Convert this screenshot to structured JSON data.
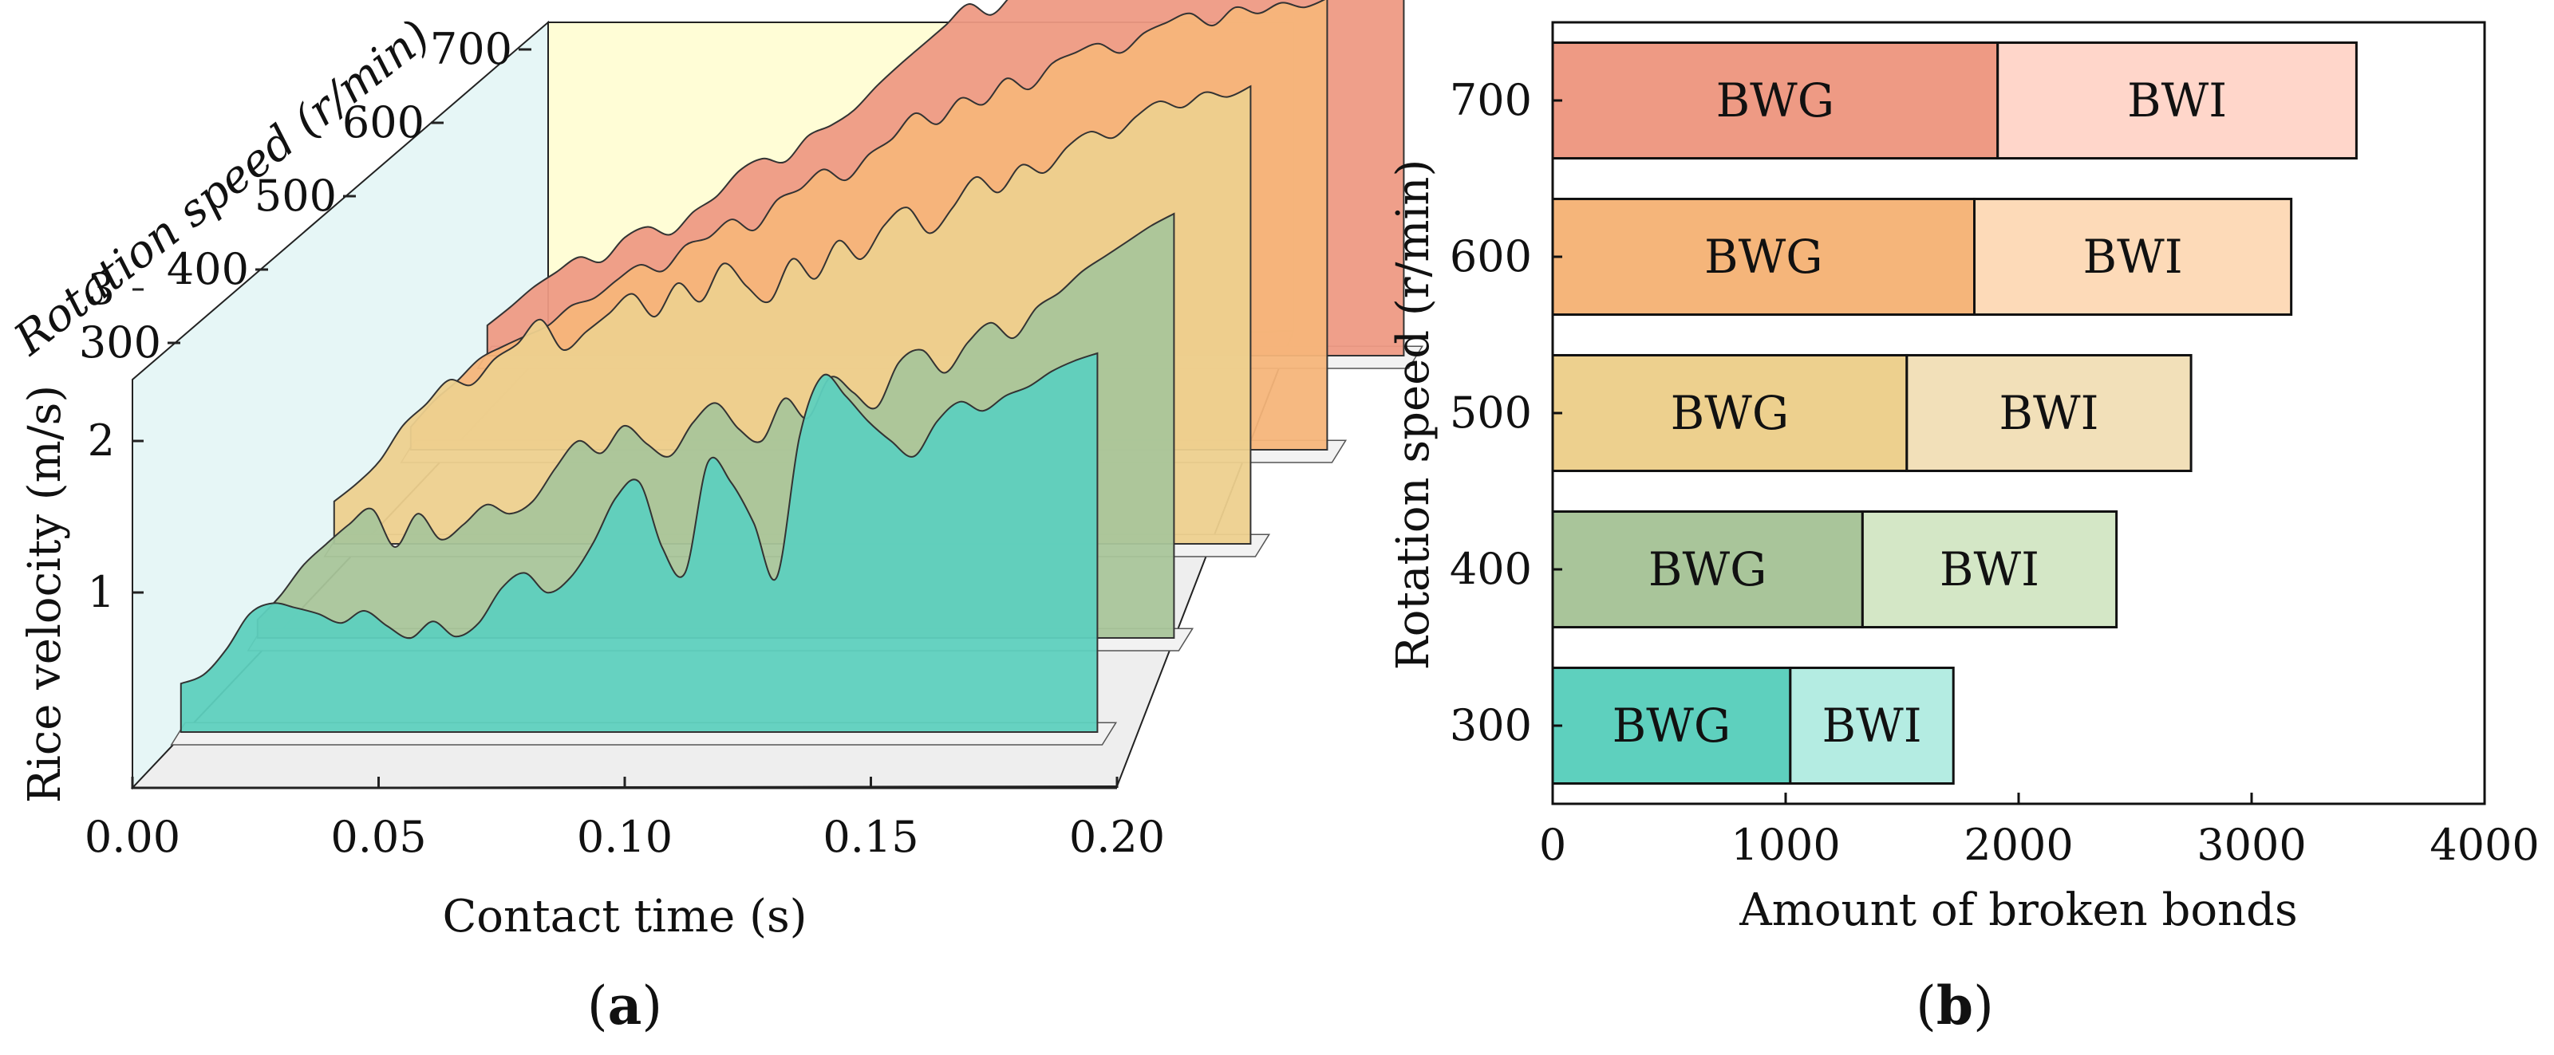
{
  "panels": {
    "a": {
      "label": "(a)",
      "label_letter": "a"
    },
    "b": {
      "label": "(b)",
      "label_letter": "b"
    }
  },
  "chart_data": [
    {
      "type": "area",
      "subtype": "3d-waterfall",
      "panel": "a",
      "xlabel": "Contact time (s)",
      "ylabel": "Rice velocity (m/s)",
      "zlabel": "Rotation speed (r/min)",
      "xlim": [
        0.0,
        0.2
      ],
      "ylim": [
        0.0,
        3.5
      ],
      "x_ticks": [
        "0.00",
        "0.05",
        "0.10",
        "0.15",
        "0.20"
      ],
      "y_ticks": [
        "1",
        "2",
        "3"
      ],
      "z_ticks": [
        "300",
        "400",
        "500",
        "600",
        "700"
      ],
      "x": [
        0.0,
        0.005,
        0.01,
        0.015,
        0.02,
        0.025,
        0.03,
        0.035,
        0.04,
        0.045,
        0.05,
        0.055,
        0.06,
        0.065,
        0.07,
        0.075,
        0.08,
        0.085,
        0.09,
        0.095,
        0.1,
        0.105,
        0.11,
        0.115,
        0.12,
        0.125,
        0.13,
        0.135,
        0.14,
        0.145,
        0.15,
        0.155,
        0.16,
        0.165,
        0.17,
        0.175,
        0.18,
        0.185,
        0.19,
        0.195,
        0.2
      ],
      "series": [
        {
          "name": "300",
          "color": "#5ED0BE",
          "values": [
            0.32,
            0.38,
            0.55,
            0.78,
            0.85,
            0.82,
            0.78,
            0.72,
            0.8,
            0.7,
            0.62,
            0.73,
            0.63,
            0.72,
            0.95,
            1.05,
            0.92,
            1.02,
            1.25,
            1.55,
            1.65,
            1.22,
            1.05,
            1.78,
            1.65,
            1.38,
            1.02,
            1.95,
            2.35,
            2.22,
            2.05,
            1.92,
            1.82,
            2.05,
            2.18,
            2.12,
            2.22,
            2.28,
            2.38,
            2.45,
            2.5
          ]
        },
        {
          "name": "400",
          "color": "#A9C59A",
          "values": [
            0.12,
            0.28,
            0.48,
            0.62,
            0.75,
            0.85,
            0.6,
            0.82,
            0.65,
            0.75,
            0.88,
            0.82,
            0.9,
            1.12,
            1.3,
            1.22,
            1.4,
            1.28,
            1.2,
            1.42,
            1.55,
            1.38,
            1.3,
            1.58,
            1.45,
            1.72,
            1.62,
            1.52,
            1.82,
            1.9,
            1.75,
            1.95,
            2.08,
            1.98,
            2.18,
            2.28,
            2.42,
            2.52,
            2.62,
            2.72,
            2.8
          ]
        },
        {
          "name": "500",
          "color": "#EDD08E",
          "values": [
            0.28,
            0.4,
            0.55,
            0.78,
            0.92,
            1.08,
            1.05,
            1.22,
            1.32,
            1.48,
            1.28,
            1.4,
            1.52,
            1.65,
            1.5,
            1.72,
            1.6,
            1.85,
            1.7,
            1.6,
            1.88,
            1.75,
            2.0,
            1.88,
            2.1,
            2.22,
            2.05,
            2.22,
            2.42,
            2.32,
            2.5,
            2.45,
            2.62,
            2.72,
            2.68,
            2.82,
            2.92,
            2.88,
            2.98,
            2.95,
            3.02
          ]
        },
        {
          "name": "600",
          "color": "#F5B57A",
          "values": [
            0.15,
            0.32,
            0.45,
            0.6,
            0.68,
            0.75,
            0.82,
            0.95,
            1.0,
            1.12,
            1.22,
            1.18,
            1.35,
            1.4,
            1.52,
            1.45,
            1.65,
            1.72,
            1.85,
            1.78,
            1.95,
            2.05,
            2.22,
            2.15,
            2.32,
            2.28,
            2.45,
            2.38,
            2.55,
            2.62,
            2.68,
            2.62,
            2.75,
            2.82,
            2.88,
            2.8,
            2.92,
            2.88,
            2.95,
            2.92,
            2.98
          ]
        },
        {
          "name": "700",
          "color": "#EE9A84",
          "values": [
            0.2,
            0.32,
            0.45,
            0.55,
            0.65,
            0.62,
            0.78,
            0.85,
            0.8,
            0.95,
            1.05,
            1.22,
            1.3,
            1.28,
            1.45,
            1.52,
            1.62,
            1.78,
            1.92,
            2.05,
            2.18,
            2.32,
            2.25,
            2.4,
            2.52,
            2.48,
            2.62,
            2.72,
            2.78,
            2.82,
            2.78,
            2.88,
            2.92,
            2.85,
            2.78,
            2.82,
            2.88,
            2.8,
            2.75,
            2.8,
            2.78
          ]
        }
      ]
    },
    {
      "type": "bar",
      "orientation": "horizontal",
      "stacked": true,
      "panel": "b",
      "xlabel": "Amount of broken bonds",
      "ylabel": "Rotation speed (r/min)",
      "xlim": [
        0,
        4000
      ],
      "x_ticks": [
        "0",
        "1000",
        "2000",
        "3000",
        "4000"
      ],
      "categories": [
        "300",
        "400",
        "500",
        "600",
        "700"
      ],
      "series": [
        {
          "name": "BWG",
          "values": [
            1020,
            1330,
            1520,
            1810,
            1910
          ],
          "colors": [
            "#5ED0BE",
            "#A9C59A",
            "#EDD08E",
            "#F5B57A",
            "#EE9A84"
          ]
        },
        {
          "name": "BWI",
          "values": [
            700,
            1090,
            1220,
            1360,
            1540
          ],
          "colors": [
            "#B4ECE2",
            "#D4E7C6",
            "#F2E0B9",
            "#FDDAB8",
            "#FFD6CA"
          ]
        }
      ]
    }
  ]
}
